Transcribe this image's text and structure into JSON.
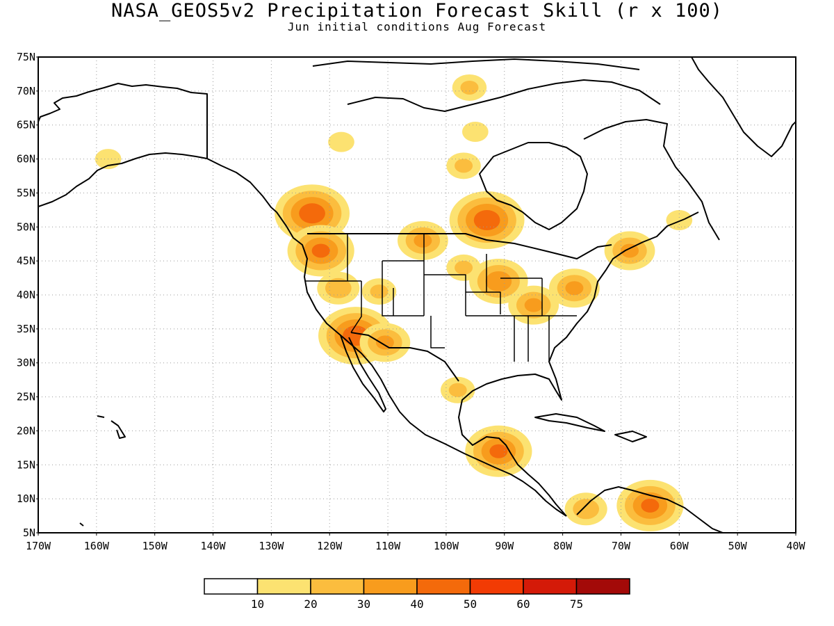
{
  "title": "NASA_GEOS5v2 Precipitation Forecast Skill (r x 100)",
  "subtitle": "Jun initial conditions  Aug Forecast",
  "map": {
    "lon_range": [
      -170,
      -40
    ],
    "lat_range": [
      5,
      75
    ],
    "lat_ticks": [
      {
        "value": 75,
        "label": "75N"
      },
      {
        "value": 70,
        "label": "70N"
      },
      {
        "value": 65,
        "label": "65N"
      },
      {
        "value": 60,
        "label": "60N"
      },
      {
        "value": 55,
        "label": "55N"
      },
      {
        "value": 50,
        "label": "50N"
      },
      {
        "value": 45,
        "label": "45N"
      },
      {
        "value": 40,
        "label": "40N"
      },
      {
        "value": 35,
        "label": "35N"
      },
      {
        "value": 30,
        "label": "30N"
      },
      {
        "value": 25,
        "label": "25N"
      },
      {
        "value": 20,
        "label": "20N"
      },
      {
        "value": 15,
        "label": "15N"
      },
      {
        "value": 10,
        "label": "10N"
      },
      {
        "value": 5,
        "label": "5N"
      }
    ],
    "lon_ticks": [
      {
        "value": -170,
        "label": "170W"
      },
      {
        "value": -160,
        "label": "160W"
      },
      {
        "value": -150,
        "label": "150W"
      },
      {
        "value": -140,
        "label": "140W"
      },
      {
        "value": -130,
        "label": "130W"
      },
      {
        "value": -120,
        "label": "120W"
      },
      {
        "value": -110,
        "label": "110W"
      },
      {
        "value": -100,
        "label": "100W"
      },
      {
        "value": -90,
        "label": "90W"
      },
      {
        "value": -80,
        "label": "80W"
      },
      {
        "value": -70,
        "label": "70W"
      },
      {
        "value": -60,
        "label": "60W"
      },
      {
        "value": -50,
        "label": "50W"
      },
      {
        "value": -40,
        "label": "40W"
      }
    ],
    "grid": "dotted"
  },
  "colorbar": {
    "colors": [
      "#ffffff",
      "#fce271",
      "#fbbd3e",
      "#f89c1d",
      "#f46a0b",
      "#f23b04",
      "#d41a08",
      "#a30a08"
    ],
    "labels": [
      "10",
      "20",
      "30",
      "40",
      "50",
      "60",
      "75"
    ]
  },
  "skill_regions": [
    {
      "lon": -123.0,
      "lat": 52.0,
      "value": 45
    },
    {
      "lon": -121.5,
      "lat": 46.5,
      "value": 40
    },
    {
      "lon": -118.5,
      "lat": 41.0,
      "value": 25
    },
    {
      "lon": -115.5,
      "lat": 34.0,
      "value": 45
    },
    {
      "lon": -110.5,
      "lat": 33.0,
      "value": 30
    },
    {
      "lon": -111.5,
      "lat": 40.5,
      "value": 20
    },
    {
      "lon": -104.0,
      "lat": 48.0,
      "value": 30
    },
    {
      "lon": -93.0,
      "lat": 51.0,
      "value": 45
    },
    {
      "lon": -97.0,
      "lat": 44.0,
      "value": 20
    },
    {
      "lon": -91.0,
      "lat": 42.0,
      "value": 35
    },
    {
      "lon": -85.0,
      "lat": 38.5,
      "value": 30
    },
    {
      "lon": -78.0,
      "lat": 41.0,
      "value": 30
    },
    {
      "lon": -68.5,
      "lat": 46.5,
      "value": 30
    },
    {
      "lon": -98.0,
      "lat": 26.0,
      "value": 20
    },
    {
      "lon": -91.0,
      "lat": 17.0,
      "value": 40
    },
    {
      "lon": -76.0,
      "lat": 8.5,
      "value": 25
    },
    {
      "lon": -65.0,
      "lat": 9.0,
      "value": 40
    },
    {
      "lon": -97.0,
      "lat": 59.0,
      "value": 20
    },
    {
      "lon": -118.0,
      "lat": 62.5,
      "value": 15
    },
    {
      "lon": -95.0,
      "lat": 64.0,
      "value": 15
    },
    {
      "lon": -96.0,
      "lat": 70.5,
      "value": 20
    },
    {
      "lon": -60.0,
      "lat": 51.0,
      "value": 15
    },
    {
      "lon": -158.0,
      "lat": 60.0,
      "value": 15
    }
  ]
}
